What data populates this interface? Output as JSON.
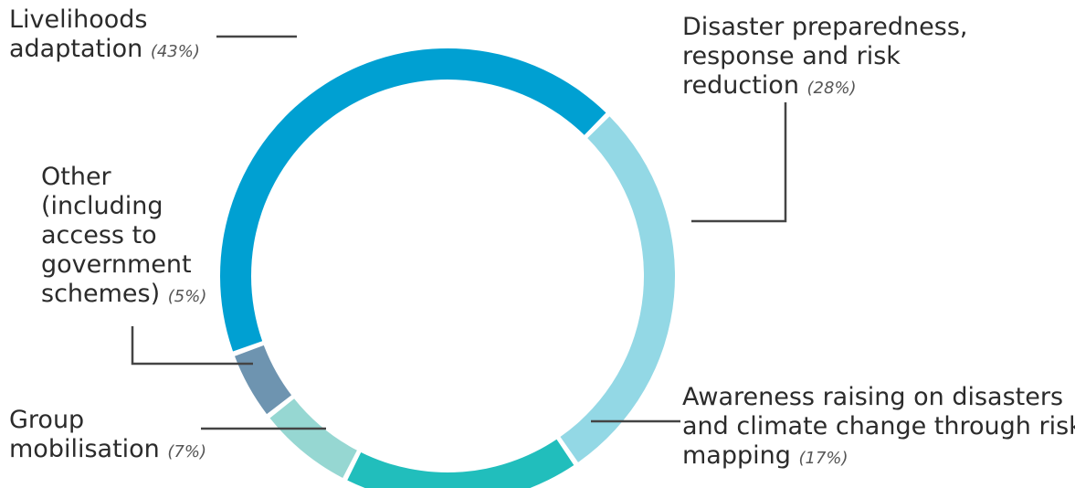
{
  "chart_data": {
    "type": "pie",
    "variant": "donut",
    "start_angle_deg": 250,
    "slices": [
      {
        "label": "Livelihoods adaptation",
        "label_lines": [
          "Livelihoods",
          "adaptation"
        ],
        "pct_text": "(43%)",
        "value": 43,
        "color": "#00a0d2"
      },
      {
        "label": "Disaster preparedness, response and risk reduction",
        "label_lines": [
          "Disaster preparedness,",
          "response and risk",
          "reduction"
        ],
        "pct_text": "(28%)",
        "value": 28,
        "color": "#93d8e5"
      },
      {
        "label": "Awareness raising on disasters and climate change through risk mapping",
        "label_lines": [
          "Awareness raising on disasters",
          "and climate change through risk",
          "mapping"
        ],
        "pct_text": "(17%)",
        "value": 17,
        "color": "#21bebc"
      },
      {
        "label": "Group mobilisation",
        "label_lines": [
          "Group",
          "mobilisation"
        ],
        "pct_text": "(7%)",
        "value": 7,
        "color": "#96d7d2"
      },
      {
        "label": "Other (including access to government schemes)",
        "label_lines": [
          "Other",
          "(including",
          "access to",
          "government",
          "schemes)"
        ],
        "pct_text": "(5%)",
        "value": 5,
        "color": "#6e94b0"
      }
    ]
  }
}
